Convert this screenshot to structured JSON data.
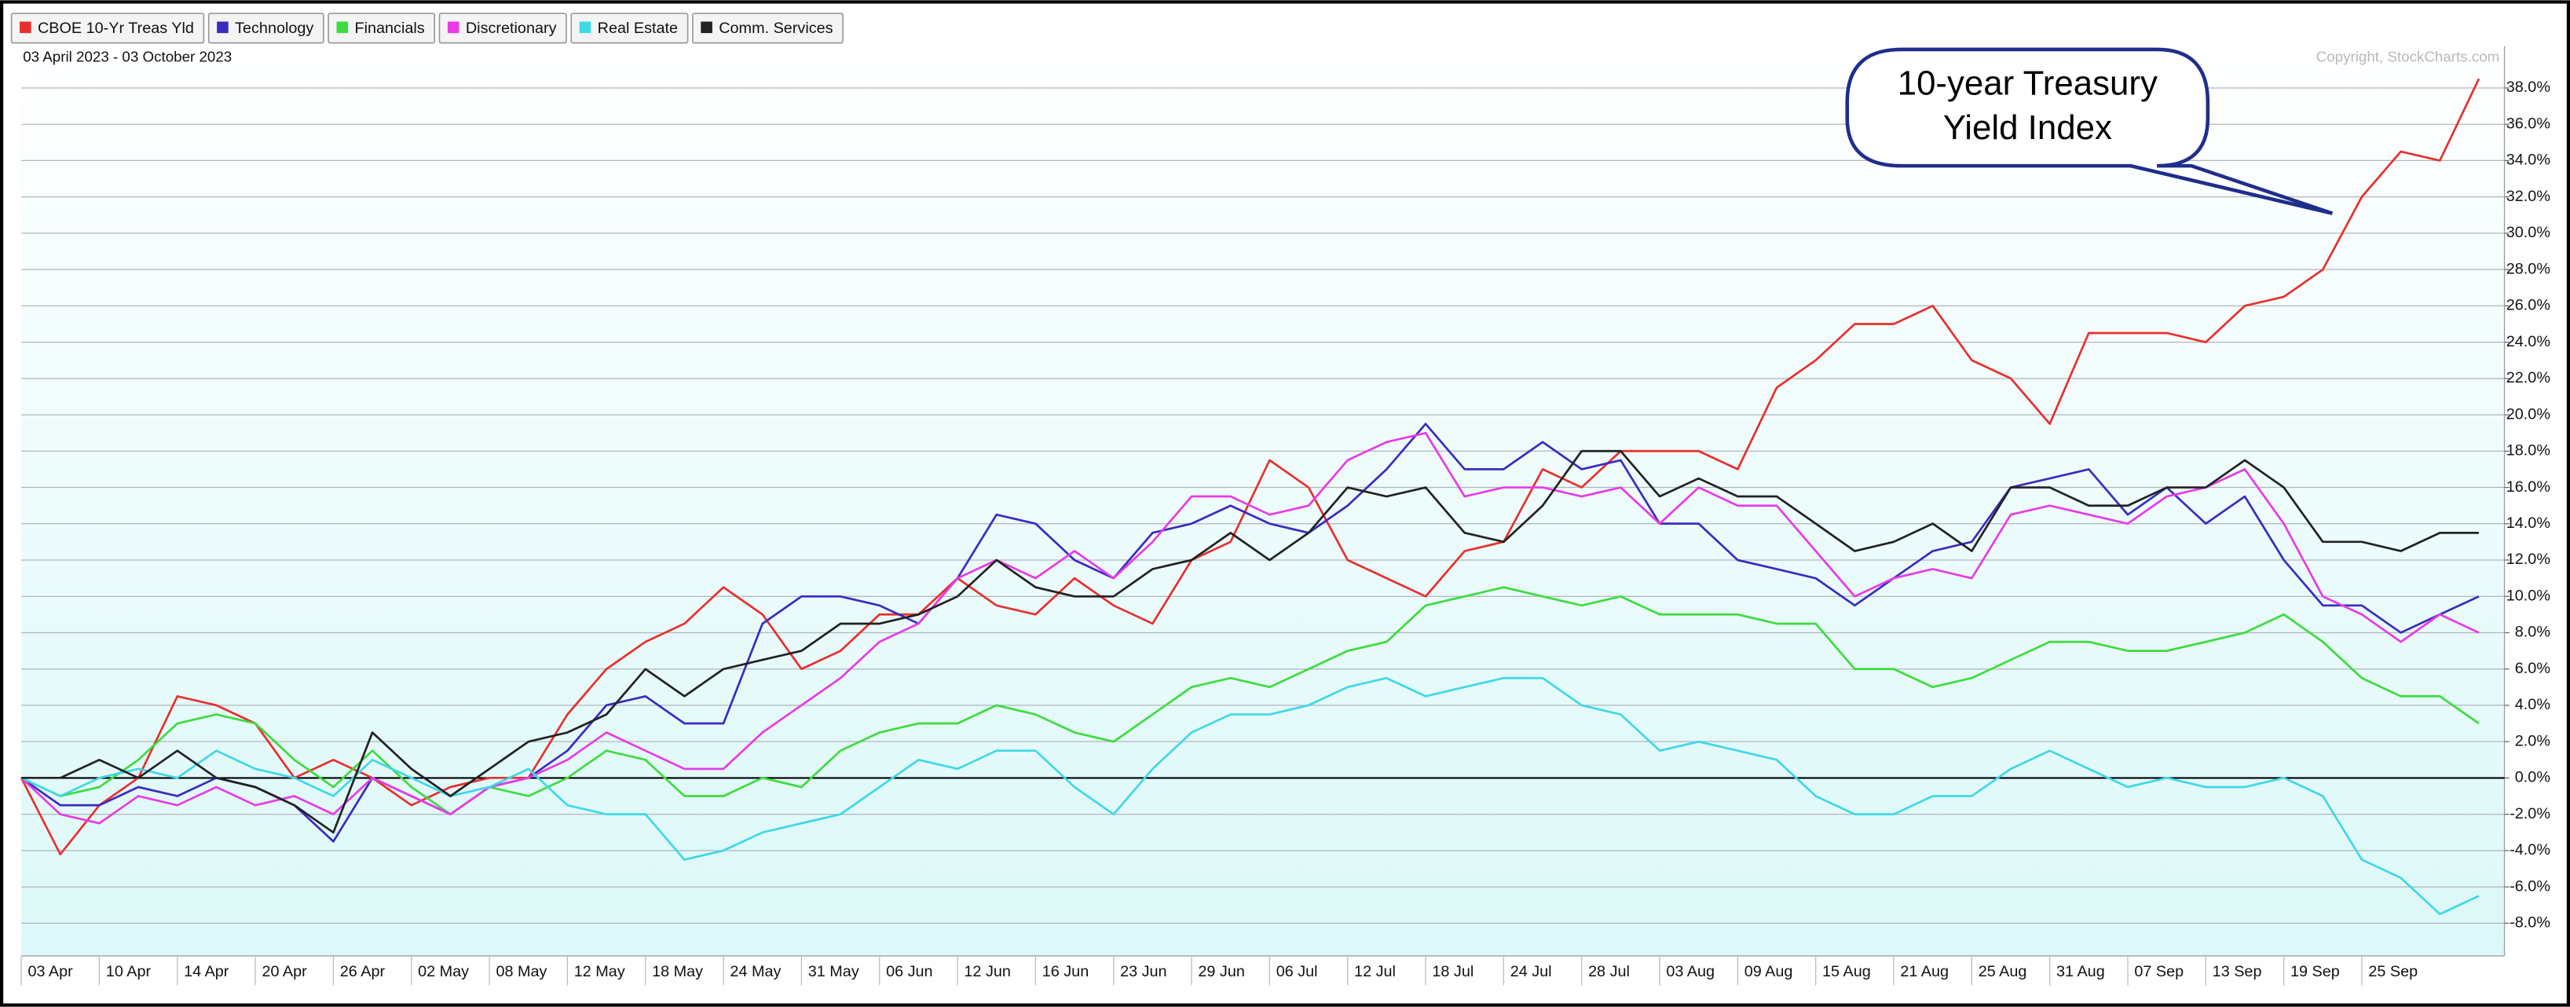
{
  "chart_data": {
    "type": "line",
    "subtitle": "03 April 2023 - 03 October 2023",
    "source": "Copyright, StockCharts.com",
    "annotation": [
      "10-year Treasury",
      "Yield Index"
    ],
    "categories": [
      "03 Apr",
      null,
      "10 Apr",
      null,
      "14 Apr",
      null,
      "20 Apr",
      null,
      "26 Apr",
      null,
      "02 May",
      null,
      "08 May",
      null,
      "12 May",
      null,
      "18 May",
      null,
      "24 May",
      null,
      "31 May",
      null,
      "06 Jun",
      null,
      "12 Jun",
      null,
      "16 Jun",
      null,
      "23 Jun",
      null,
      "29 Jun",
      null,
      "06 Jul",
      null,
      "12 Jul",
      null,
      "18 Jul",
      null,
      "24 Jul",
      null,
      "28 Jul",
      null,
      "03 Aug",
      null,
      "09 Aug",
      null,
      "15 Aug",
      null,
      "21 Aug",
      null,
      "25 Aug",
      null,
      "31 Aug",
      null,
      "07 Sep",
      null,
      "13 Sep",
      null,
      "19 Sep",
      null,
      "25 Sep",
      null,
      null,
      null
    ],
    "series": [
      {
        "name": "CBOE 10-Yr Treas Yld",
        "color": "#e8302e",
        "values": [
          0,
          -4.2,
          -1.5,
          0,
          4.5,
          4,
          3,
          0,
          1,
          0,
          -1.5,
          -0.5,
          0,
          0,
          3.5,
          6,
          7.5,
          8.5,
          10.5,
          9,
          6,
          7,
          9,
          9,
          11,
          9.5,
          9,
          11,
          9.5,
          8.5,
          12,
          13,
          17.5,
          16,
          12,
          11,
          10,
          12.5,
          13,
          17,
          16,
          18,
          18,
          18,
          17,
          21.5,
          23,
          25,
          25,
          26,
          23,
          22,
          19.5,
          24.5,
          24.5,
          24.5,
          24,
          26,
          26.5,
          28,
          32,
          34.5,
          34,
          38.5
        ]
      },
      {
        "name": "Technology",
        "color": "#3b2bbf",
        "values": [
          0,
          -1.5,
          -1.5,
          -0.5,
          -1,
          0,
          -0.5,
          -1.5,
          -3.5,
          0,
          -1,
          -2,
          -0.5,
          0,
          1.5,
          4,
          4.5,
          3,
          3,
          8.5,
          10,
          10,
          9.5,
          8.5,
          11,
          14.5,
          14,
          12,
          11,
          13.5,
          14,
          15,
          14,
          13.5,
          15,
          17,
          19.5,
          17,
          17,
          18.5,
          17,
          17.5,
          14,
          14,
          12,
          11.5,
          11,
          9.5,
          11,
          12.5,
          13,
          16,
          16.5,
          17,
          14.5,
          16,
          14,
          15.5,
          12,
          9.5,
          9.5,
          8,
          9,
          10
        ]
      },
      {
        "name": "Financials",
        "color": "#3ddc3d",
        "values": [
          0,
          -1,
          -0.5,
          1,
          3,
          3.5,
          3,
          1,
          -0.5,
          1.5,
          -0.5,
          -2,
          -0.5,
          -1,
          0,
          1.5,
          1,
          -1,
          -1,
          0,
          -0.5,
          1.5,
          2.5,
          3,
          3,
          4,
          3.5,
          2.5,
          2,
          3.5,
          5,
          5.5,
          5,
          6,
          7,
          7.5,
          9.5,
          10,
          10.5,
          10,
          9.5,
          10,
          9,
          9,
          9,
          8.5,
          8.5,
          6,
          6,
          5,
          5.5,
          6.5,
          7.5,
          7.5,
          7,
          7,
          7.5,
          8,
          9,
          7.5,
          5.5,
          4.5,
          4.5,
          3
        ]
      },
      {
        "name": "Discretionary",
        "color": "#e83be8",
        "values": [
          0,
          -2,
          -2.5,
          -1,
          -1.5,
          -0.5,
          -1.5,
          -1,
          -2,
          0,
          -1,
          -2,
          -0.5,
          0,
          1,
          2.5,
          1.5,
          0.5,
          0.5,
          2.5,
          4,
          5.5,
          7.5,
          8.5,
          11,
          12,
          11,
          12.5,
          11,
          13,
          15.5,
          15.5,
          14.5,
          15,
          17.5,
          18.5,
          19,
          15.5,
          16,
          16,
          15.5,
          16,
          14,
          16,
          15,
          15,
          12.5,
          10,
          11,
          11.5,
          11,
          14.5,
          15,
          14.5,
          14,
          15.5,
          16,
          17,
          14,
          10,
          9,
          7.5,
          9,
          8
        ]
      },
      {
        "name": "Real Estate",
        "color": "#3fd8e8",
        "values": [
          0,
          -1,
          0,
          0.5,
          0,
          1.5,
          0.5,
          0,
          -1,
          1,
          0,
          -1,
          -0.5,
          0.5,
          -1.5,
          -2,
          -2,
          -4.5,
          -4,
          -3,
          -2.5,
          -2,
          -0.5,
          1,
          0.5,
          1.5,
          1.5,
          -0.5,
          -2,
          0.5,
          2.5,
          3.5,
          3.5,
          4,
          5,
          5.5,
          4.5,
          5,
          5.5,
          5.5,
          4,
          3.5,
          1.5,
          2,
          1.5,
          1,
          -1,
          -2,
          -2,
          -1,
          -1,
          0.5,
          1.5,
          0.5,
          -0.5,
          0,
          -0.5,
          -0.5,
          0,
          -1,
          -4.5,
          -5.5,
          -7.5,
          -6.5
        ]
      },
      {
        "name": "Comm. Services",
        "color": "#222222",
        "values": [
          0,
          0,
          1,
          0,
          1.5,
          0,
          -0.5,
          -1.5,
          -3,
          2.5,
          0.5,
          -1,
          0.5,
          2,
          2.5,
          3.5,
          6,
          4.5,
          6,
          6.5,
          7,
          8.5,
          8.5,
          9,
          10,
          12,
          10.5,
          10,
          10,
          11.5,
          12,
          13.5,
          12,
          13.5,
          16,
          15.5,
          16,
          13.5,
          13,
          15,
          18,
          18,
          15.5,
          16.5,
          15.5,
          15.5,
          14,
          12.5,
          13,
          14,
          12.5,
          16,
          16,
          15,
          15,
          16,
          16,
          17.5,
          16,
          13,
          13,
          12.5,
          13.5,
          13.5
        ]
      }
    ],
    "ylim": [
      -9.8,
      40.3
    ],
    "yticks": [
      {
        "value": -8,
        "label": "-8.0%"
      },
      {
        "value": -6,
        "label": "-6.0%"
      },
      {
        "value": -4,
        "label": "-4.0%"
      },
      {
        "value": -2,
        "label": "-2.0%"
      },
      {
        "value": 0,
        "label": "0.0%"
      },
      {
        "value": 2,
        "label": "2.0%"
      },
      {
        "value": 4,
        "label": "4.0%"
      },
      {
        "value": 6,
        "label": "6.0%"
      },
      {
        "value": 8,
        "label": "8.0%"
      },
      {
        "value": 10,
        "label": "10.0%"
      },
      {
        "value": 12,
        "label": "12.0%"
      },
      {
        "value": 14,
        "label": "14.0%"
      },
      {
        "value": 16,
        "label": "16.0%"
      },
      {
        "value": 18,
        "label": "18.0%"
      },
      {
        "value": 20,
        "label": "20.0%"
      },
      {
        "value": 22,
        "label": "22.0%"
      },
      {
        "value": 24,
        "label": "24.0%"
      },
      {
        "value": 26,
        "label": "26.0%"
      },
      {
        "value": 28,
        "label": "28.0%"
      },
      {
        "value": 30,
        "label": "30.0%"
      },
      {
        "value": 32,
        "label": "32.0%"
      },
      {
        "value": 34,
        "label": "34.0%"
      },
      {
        "value": 36,
        "label": "36.0%"
      },
      {
        "value": 38,
        "label": "38.0%"
      }
    ],
    "grid": true,
    "zero_line": true,
    "legend": "top-left"
  }
}
